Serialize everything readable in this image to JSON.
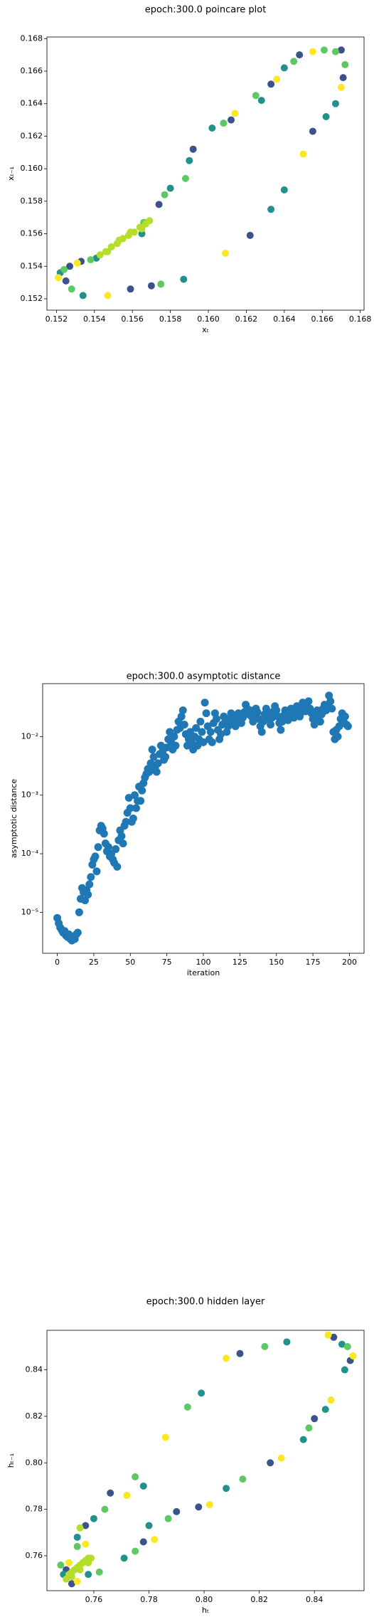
{
  "chart_data": [
    {
      "type": "scatter",
      "title": "epoch:300.0 poincare plot",
      "xlabel": "xₜ",
      "ylabel": "xₜ₋₁",
      "xlim": [
        0.1515,
        0.1682
      ],
      "ylim": [
        0.1513,
        0.1681
      ],
      "xticks": [
        0.152,
        0.154,
        0.156,
        0.158,
        {
          "value": 0.16,
          "label": "0.160"
        },
        0.162,
        0.164,
        0.166,
        0.168
      ],
      "yticks": [
        0.152,
        0.154,
        0.156,
        0.158,
        {
          "value": 0.16,
          "label": "0.160"
        },
        0.162,
        0.164,
        0.166,
        0.168
      ],
      "series": [
        {
          "color": "#3b528b",
          "x": [
            0.1525,
            0.1527,
            0.1533,
            0.1559,
            0.157,
            0.1574,
            0.1592,
            0.1612,
            0.1622,
            0.1633,
            0.1648,
            0.1655,
            0.167,
            0.1671
          ],
          "y": [
            0.1531,
            0.154,
            0.1543,
            0.1526,
            0.1528,
            0.1578,
            0.1612,
            0.163,
            0.1559,
            0.1652,
            0.167,
            0.1623,
            0.1673,
            0.1656
          ]
        },
        {
          "color": "#21918c",
          "x": [
            0.1522,
            0.1534,
            0.1541,
            0.1565,
            0.158,
            0.159,
            0.1602,
            0.1628,
            0.1633,
            0.164,
            0.164,
            0.1662,
            0.1667,
            0.1587
          ],
          "y": [
            0.1536,
            0.1522,
            0.1545,
            0.156,
            0.1588,
            0.1605,
            0.1625,
            0.1642,
            0.1575,
            0.1587,
            0.1662,
            0.1632,
            0.164,
            0.1532
          ]
        },
        {
          "color": "#5ec962",
          "x": [
            0.1524,
            0.1528,
            0.1538,
            0.1566,
            0.1577,
            0.1588,
            0.1608,
            0.1625,
            0.1645,
            0.1661,
            0.1667,
            0.1672,
            0.1575
          ],
          "y": [
            0.1538,
            0.1526,
            0.1544,
            0.1567,
            0.1584,
            0.1594,
            0.1628,
            0.1645,
            0.1666,
            0.1673,
            0.1672,
            0.1664,
            0.1529
          ]
        },
        {
          "color": "#b5de2b",
          "x": [
            0.1543,
            0.1546,
            0.1549,
            0.1552,
            0.1555,
            0.1558,
            0.1561,
            0.1564,
            0.1567,
            0.1569,
            0.1547,
            0.1553,
            0.1559,
            0.1565
          ],
          "y": [
            0.1547,
            0.1549,
            0.1552,
            0.1554,
            0.1557,
            0.1559,
            0.1561,
            0.1564,
            0.1566,
            0.1568,
            0.1549,
            0.1556,
            0.1561,
            0.1563
          ]
        },
        {
          "color": "#fde725",
          "x": [
            0.1521,
            0.1531,
            0.1547,
            0.1609,
            0.1614,
            0.1636,
            0.165,
            0.1655,
            0.167
          ],
          "y": [
            0.1533,
            0.1542,
            0.1522,
            0.1548,
            0.1634,
            0.1655,
            0.1609,
            0.1672,
            0.165
          ]
        }
      ]
    },
    {
      "type": "scatter",
      "title": "epoch:300.0 asymptotic distance",
      "xlabel": "iteration",
      "ylabel": "asymptotic distance",
      "ylog": true,
      "xlim": [
        -10,
        210
      ],
      "ylim": [
        2e-06,
        0.08
      ],
      "xticks": [
        0,
        25,
        50,
        75,
        100,
        125,
        150,
        175,
        200
      ],
      "yticks": [
        {
          "value": 1e-05,
          "label": "10⁻⁵"
        },
        {
          "value": 0.0001,
          "label": "10⁻⁴"
        },
        {
          "value": 0.001,
          "label": "10⁻³"
        },
        {
          "value": 0.01,
          "label": "10⁻²"
        }
      ],
      "series": [
        {
          "color": "#1f77b4",
          "x": [
            0,
            1,
            2,
            3,
            4,
            5,
            6,
            7,
            8,
            9,
            10,
            11,
            12,
            13,
            14,
            15,
            16,
            17,
            18,
            19,
            20,
            21,
            22,
            23,
            24,
            25,
            26,
            27,
            28,
            29,
            30,
            31,
            32,
            33,
            34,
            35,
            36,
            37,
            38,
            39,
            40,
            41,
            42,
            43,
            44,
            45,
            46,
            47,
            48,
            49,
            50,
            51,
            52,
            53,
            54,
            55,
            56,
            57,
            58,
            59,
            60,
            61,
            62,
            63,
            64,
            65,
            66,
            67,
            68,
            69,
            70,
            71,
            72,
            73,
            74,
            75,
            76,
            77,
            78,
            79,
            80,
            81,
            82,
            83,
            84,
            85,
            86,
            87,
            88,
            89,
            90,
            91,
            92,
            93,
            94,
            95,
            96,
            97,
            98,
            99,
            100,
            101,
            102,
            103,
            104,
            105,
            106,
            107,
            108,
            109,
            110,
            111,
            112,
            113,
            114,
            115,
            116,
            117,
            118,
            119,
            120,
            121,
            122,
            123,
            124,
            125,
            126,
            127,
            128,
            129,
            130,
            131,
            132,
            133,
            134,
            135,
            136,
            137,
            138,
            139,
            140,
            141,
            142,
            143,
            144,
            145,
            146,
            147,
            148,
            149,
            150,
            151,
            152,
            153,
            154,
            155,
            156,
            157,
            158,
            159,
            160,
            161,
            162,
            163,
            164,
            165,
            166,
            167,
            168,
            169,
            170,
            171,
            172,
            173,
            174,
            175,
            176,
            177,
            178,
            179,
            180,
            181,
            182,
            183,
            184,
            185,
            186,
            187,
            188,
            189,
            190,
            191,
            192,
            193,
            194,
            195,
            196,
            197,
            198,
            199
          ],
          "y": [
            8e-06,
            6.5e-06,
            5.5e-06,
            5e-06,
            4.5e-06,
            4.8e-06,
            4e-06,
            3.8e-06,
            4.2e-06,
            3.5e-06,
            3.3e-06,
            3.8e-06,
            3.5e-06,
            4.2e-06,
            4.5e-06,
            1e-05,
            1.7e-05,
            2.6e-05,
            2.2e-05,
            1.6e-05,
            2.4e-05,
            2e-05,
            3e-05,
            4e-05,
            6.5e-05,
            8e-05,
            9e-05,
            5e-05,
            0.00013,
            0.00025,
            0.0003,
            0.00027,
            0.00022,
            0.00015,
            0.00011,
            0.00013,
            9e-05,
            0.0001,
            8e-05,
            7e-05,
            0.00012,
            6e-05,
            0.00017,
            0.00025,
            0.0002,
            0.00015,
            0.0003,
            0.00035,
            0.0005,
            0.0009,
            0.0006,
            0.00035,
            0.0004,
            0.001,
            0.0006,
            0.0008,
            0.0014,
            0.0008,
            0.0012,
            0.0016,
            0.002,
            0.0023,
            0.0028,
            0.0025,
            0.0035,
            0.006,
            0.0045,
            0.003,
            0.0025,
            0.0035,
            0.005,
            0.007,
            0.0055,
            0.004,
            0.0045,
            0.0065,
            0.009,
            0.012,
            0.008,
            0.006,
            0.01,
            0.007,
            0.013,
            0.018,
            0.014,
            0.022,
            0.028,
            0.016,
            0.011,
            0.007,
            0.009,
            0.012,
            0.008,
            0.006,
            0.01,
            0.014,
            0.007,
            0.009,
            0.018,
            0.012,
            0.008,
            0.038,
            0.025,
            0.015,
            0.009,
            0.012,
            0.008,
            0.017,
            0.025,
            0.02,
            0.013,
            0.009,
            0.011,
            0.016,
            0.022,
            0.018,
            0.012,
            0.015,
            0.02,
            0.025,
            0.018,
            0.022,
            0.015,
            0.02,
            0.025,
            0.022,
            0.017,
            0.021,
            0.026,
            0.035,
            0.03,
            0.024,
            0.028,
            0.022,
            0.018,
            0.023,
            0.03,
            0.026,
            0.02,
            0.015,
            0.012,
            0.018,
            0.024,
            0.03,
            0.025,
            0.02,
            0.016,
            0.021,
            0.027,
            0.033,
            0.028,
            0.022,
            0.017,
            0.013,
            0.018,
            0.023,
            0.028,
            0.024,
            0.019,
            0.025,
            0.03,
            0.026,
            0.021,
            0.027,
            0.033,
            0.028,
            0.022,
            0.026,
            0.038,
            0.032,
            0.027,
            0.034,
            0.04,
            0.03,
            0.025,
            0.02,
            0.016,
            0.022,
            0.028,
            0.023,
            0.018,
            0.024,
            0.03,
            0.035,
            0.028,
            0.033,
            0.05,
            0.04,
            0.03,
            0.012,
            0.009,
            0.013,
            0.01,
            0.015,
            0.02,
            0.025,
            0.018,
            0.022,
            0.016,
            0.015
          ]
        }
      ]
    },
    {
      "type": "scatter",
      "title": "epoch:300.0 hidden layer",
      "xlabel": "hₜ",
      "ylabel": "hₜ₋₁",
      "xlim": [
        0.743,
        0.858
      ],
      "ylim": [
        0.745,
        0.857
      ],
      "xticks": [
        0.76,
        0.78,
        {
          "value": 0.8,
          "label": "0.80"
        },
        0.82,
        0.84
      ],
      "yticks": [
        0.76,
        0.78,
        {
          "value": 0.8,
          "label": "0.80"
        },
        0.82,
        0.84
      ],
      "series": [
        {
          "color": "#3b528b",
          "x": [
            0.75,
            0.757,
            0.766,
            0.813,
            0.847,
            0.853,
            0.84,
            0.824,
            0.798,
            0.79,
            0.778,
            0.752
          ],
          "y": [
            0.754,
            0.773,
            0.787,
            0.847,
            0.854,
            0.844,
            0.819,
            0.8,
            0.781,
            0.779,
            0.766,
            0.748
          ]
        },
        {
          "color": "#21918c",
          "x": [
            0.749,
            0.754,
            0.76,
            0.778,
            0.799,
            0.83,
            0.85,
            0.851,
            0.844,
            0.836,
            0.808,
            0.78,
            0.771,
            0.758
          ],
          "y": [
            0.752,
            0.768,
            0.776,
            0.79,
            0.83,
            0.852,
            0.851,
            0.84,
            0.823,
            0.81,
            0.789,
            0.773,
            0.759,
            0.752
          ]
        },
        {
          "color": "#5ec962",
          "x": [
            0.748,
            0.754,
            0.764,
            0.775,
            0.794,
            0.822,
            0.852,
            0.838,
            0.814,
            0.787,
            0.775,
            0.762
          ],
          "y": [
            0.756,
            0.764,
            0.78,
            0.794,
            0.824,
            0.85,
            0.85,
            0.815,
            0.793,
            0.776,
            0.762,
            0.753
          ]
        },
        {
          "color": "#b5de2b",
          "x": [
            0.75,
            0.751,
            0.752,
            0.753,
            0.754,
            0.755,
            0.756,
            0.757,
            0.758,
            0.759,
            0.752,
            0.755,
            0.758,
            0.755
          ],
          "y": [
            0.75,
            0.752,
            0.753,
            0.754,
            0.755,
            0.756,
            0.757,
            0.758,
            0.759,
            0.759,
            0.751,
            0.754,
            0.757,
            0.772
          ]
        },
        {
          "color": "#fde725",
          "x": [
            0.751,
            0.757,
            0.772,
            0.786,
            0.808,
            0.845,
            0.854,
            0.846,
            0.828,
            0.802,
            0.782,
            0.754
          ],
          "y": [
            0.757,
            0.765,
            0.786,
            0.811,
            0.845,
            0.855,
            0.846,
            0.827,
            0.802,
            0.782,
            0.767,
            0.749
          ]
        }
      ]
    }
  ]
}
